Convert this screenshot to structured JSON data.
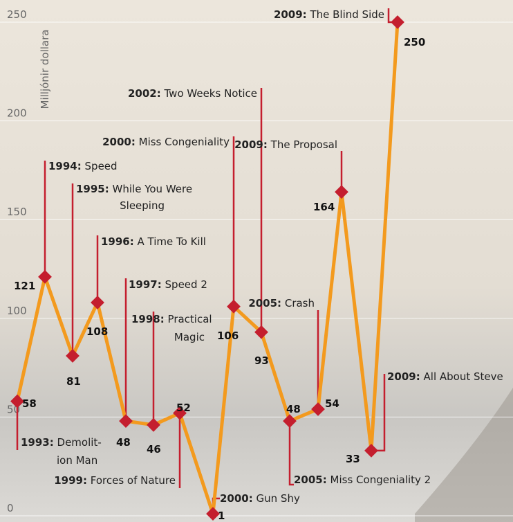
{
  "chart_data": {
    "type": "line",
    "y_label": "Milljónir dollara",
    "ylim": [
      0,
      250
    ],
    "yticks": [
      0,
      50,
      100,
      150,
      200,
      250
    ],
    "grid": true,
    "series": [
      {
        "color": "#f39a1e",
        "marker_color": "#c41e2e",
        "values": [
          58,
          121,
          81,
          108,
          48,
          46,
          52,
          1,
          106,
          93,
          48,
          54,
          164,
          33,
          250
        ]
      }
    ],
    "annotations": [
      {
        "year": "1993:",
        "lines": [
          "Demolit-",
          "ion Man"
        ]
      },
      {
        "year": "1994:",
        "lines": [
          "Speed"
        ]
      },
      {
        "year": "1995:",
        "lines": [
          "While You Were",
          "Sleeping"
        ]
      },
      {
        "year": "1996:",
        "lines": [
          "A Time To Kill"
        ]
      },
      {
        "year": "1997:",
        "lines": [
          "Speed 2"
        ]
      },
      {
        "year": "1998:",
        "lines": [
          "Practical",
          "Magic"
        ]
      },
      {
        "year": "1999:",
        "lines": [
          "Forces of Nature"
        ]
      },
      {
        "year": "2000:",
        "lines": [
          "Gun Shy"
        ]
      },
      {
        "year": "2000:",
        "lines": [
          "Miss Congeniality"
        ]
      },
      {
        "year": "2002:",
        "lines": [
          "Two Weeks Notice"
        ]
      },
      {
        "year": "2005:",
        "lines": [
          "Miss Congeniality 2"
        ]
      },
      {
        "year": "2005:",
        "lines": [
          "Crash"
        ]
      },
      {
        "year": "2009:",
        "lines": [
          "The Proposal"
        ]
      },
      {
        "year": "2009:",
        "lines": [
          "All About Steve"
        ]
      },
      {
        "year": "2009:",
        "lines": [
          "The Blind Side"
        ]
      }
    ]
  }
}
